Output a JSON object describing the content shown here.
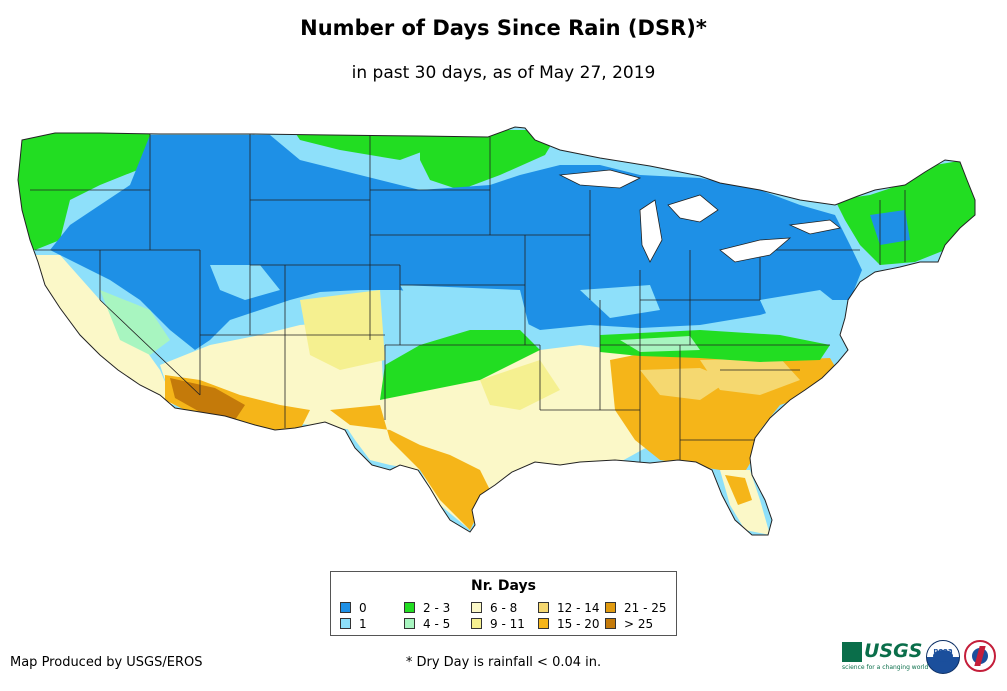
{
  "title": "Number of Days Since Rain (DSR)*",
  "subtitle": "in past 30 days, as of May 27, 2019",
  "legend": {
    "title": "Nr. Days",
    "items": [
      {
        "label": "0",
        "color": "#1e90e6"
      },
      {
        "label": "1",
        "color": "#8ee0fa"
      },
      {
        "label": "2 - 3",
        "color": "#22dd22"
      },
      {
        "label": "4 - 5",
        "color": "#a8f5c0"
      },
      {
        "label": "6 - 8",
        "color": "#fbf8c8"
      },
      {
        "label": "9 - 11",
        "color": "#f5f090"
      },
      {
        "label": "12 - 14",
        "color": "#f5d870"
      },
      {
        "label": "15 - 20",
        "color": "#f5b519"
      },
      {
        "label": "21 - 25",
        "color": "#e09a10"
      },
      {
        "label": "> 25",
        "color": "#c47a0a"
      }
    ]
  },
  "credit": "Map Produced by USGS/EROS",
  "footnote": "* Dry Day is rainfall < 0.04 in.",
  "logos": {
    "usgs": "USGS",
    "usgs_tagline": "science for a changing world",
    "noaa": "noaa",
    "nws_icon": "nws-icon"
  }
}
